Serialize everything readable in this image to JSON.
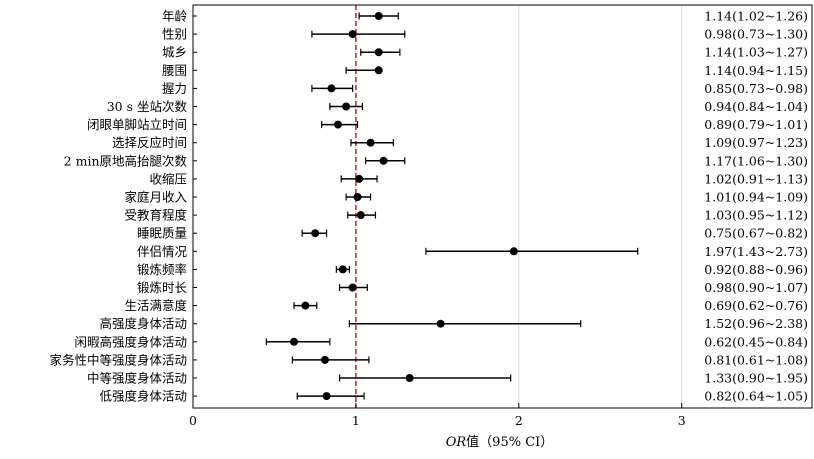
{
  "chart_data": {
    "type": "forest",
    "xlabel_italic": "OR",
    "xlabel_rest": "值（95% CI）",
    "xlim": [
      0,
      3.8
    ],
    "xticks": [
      0,
      1,
      2,
      3
    ],
    "reference_line": 1,
    "grid": "x-major",
    "rows": [
      {
        "label": "年龄",
        "or": 1.14,
        "lo": 1.02,
        "hi": 1.26,
        "text": "1.14(1.02~1.26)"
      },
      {
        "label": "性别",
        "or": 0.98,
        "lo": 0.73,
        "hi": 1.3,
        "text": "0.98(0.73~1.30)"
      },
      {
        "label": "城乡",
        "or": 1.14,
        "lo": 1.03,
        "hi": 1.27,
        "text": "1.14(1.03~1.27)"
      },
      {
        "label": "腰围",
        "or": 1.14,
        "lo": 0.94,
        "hi": 1.15,
        "text": "1.14(0.94~1.15)"
      },
      {
        "label": "握力",
        "or": 0.85,
        "lo": 0.73,
        "hi": 0.98,
        "text": "0.85(0.73~0.98)"
      },
      {
        "label": "30 s 坐站次数",
        "or": 0.94,
        "lo": 0.84,
        "hi": 1.04,
        "text": "0.94(0.84~1.04)"
      },
      {
        "label": "闭眼单脚站立时间",
        "or": 0.89,
        "lo": 0.79,
        "hi": 1.01,
        "text": "0.89(0.79~1.01)"
      },
      {
        "label": "选择反应时间",
        "or": 1.09,
        "lo": 0.97,
        "hi": 1.23,
        "text": "1.09(0.97~1.23)"
      },
      {
        "label": "2 min原地高抬腿次数",
        "or": 1.17,
        "lo": 1.06,
        "hi": 1.3,
        "text": "1.17(1.06~1.30)"
      },
      {
        "label": "收缩压",
        "or": 1.02,
        "lo": 0.91,
        "hi": 1.13,
        "text": "1.02(0.91~1.13)"
      },
      {
        "label": "家庭月收入",
        "or": 1.01,
        "lo": 0.94,
        "hi": 1.09,
        "text": "1.01(0.94~1.09)"
      },
      {
        "label": "受教育程度",
        "or": 1.03,
        "lo": 0.95,
        "hi": 1.12,
        "text": "1.03(0.95~1.12)"
      },
      {
        "label": "睡眠质量",
        "or": 0.75,
        "lo": 0.67,
        "hi": 0.82,
        "text": "0.75(0.67~0.82)"
      },
      {
        "label": "伴侣情况",
        "or": 1.97,
        "lo": 1.43,
        "hi": 2.73,
        "text": "1.97(1.43~2.73)"
      },
      {
        "label": "锻炼频率",
        "or": 0.92,
        "lo": 0.88,
        "hi": 0.96,
        "text": "0.92(0.88~0.96)"
      },
      {
        "label": "锻炼时长",
        "or": 0.98,
        "lo": 0.9,
        "hi": 1.07,
        "text": "0.98(0.90~1.07)"
      },
      {
        "label": "生活满意度",
        "or": 0.69,
        "lo": 0.62,
        "hi": 0.76,
        "text": "0.69(0.62~0.76)"
      },
      {
        "label": "高强度身体活动",
        "or": 1.52,
        "lo": 0.96,
        "hi": 2.38,
        "text": "1.52(0.96~2.38)"
      },
      {
        "label": "闲暇高强度身体活动",
        "or": 0.62,
        "lo": 0.45,
        "hi": 0.84,
        "text": "0.62(0.45~0.84)"
      },
      {
        "label": "家务性中等强度身体活动",
        "or": 0.81,
        "lo": 0.61,
        "hi": 1.08,
        "text": "0.81(0.61~1.08)"
      },
      {
        "label": "中等强度身体活动",
        "or": 1.33,
        "lo": 0.9,
        "hi": 1.95,
        "text": "1.33(0.90~1.95)"
      },
      {
        "label": "低强度身体活动",
        "or": 0.82,
        "lo": 0.64,
        "hi": 1.05,
        "text": "0.82(0.64~1.05)"
      }
    ],
    "colors": {
      "point": "#000000",
      "reference": "#d62728",
      "grid": "#d9d9d9",
      "axis": "#000000"
    }
  }
}
